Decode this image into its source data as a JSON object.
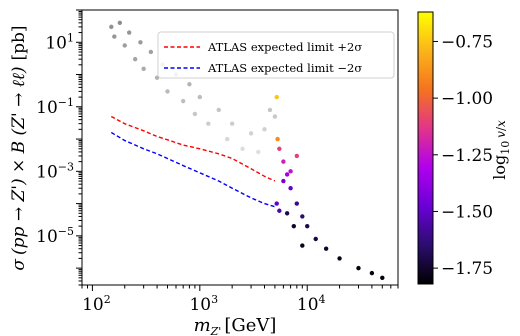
{
  "chart_data": {
    "type": "scatter",
    "title": "",
    "xlabel_base": "m",
    "xlabel_sub": "Z'",
    "xlabel_unit": "[GeV]",
    "ylabel_sigma": "σ",
    "ylabel_expr": "(pp → Z') × B (Z' → ℓℓ)",
    "ylabel_unit": "[pb]",
    "x_scale": "log",
    "y_scale": "log",
    "xlim": [
      80,
      70000
    ],
    "ylim": [
      3e-07,
      100
    ],
    "grid": false,
    "x_ticks": [
      {
        "base": "10",
        "exp": "2",
        "value": 100
      },
      {
        "base": "10",
        "exp": "3",
        "value": 1000
      },
      {
        "base": "10",
        "exp": "4",
        "value": 10000
      }
    ],
    "y_ticks": [
      {
        "base": "10",
        "exp": "1",
        "value": 10
      },
      {
        "base": "10",
        "exp": "−1",
        "value": 0.1
      },
      {
        "base": "10",
        "exp": "−3",
        "value": 0.001
      },
      {
        "base": "10",
        "exp": "−5",
        "value": 1e-05
      }
    ],
    "legend": {
      "placement": "top-right",
      "entries": [
        {
          "label": "ATLAS expected limit +2σ",
          "color": "#ff0000",
          "style": "dashed"
        },
        {
          "label": "ATLAS expected limit −2σ",
          "color": "#0000ff",
          "style": "dashed"
        }
      ]
    },
    "series": [
      {
        "name": "ATLAS expected limit +2σ",
        "color": "#ff0000",
        "style": "dashed",
        "x": [
          150,
          200,
          300,
          400,
          500,
          700,
          1000,
          1500,
          2000,
          3000,
          4000,
          5000
        ],
        "y": [
          0.05,
          0.03,
          0.018,
          0.012,
          0.0095,
          0.0065,
          0.005,
          0.0035,
          0.0025,
          0.0012,
          0.0007,
          0.0005
        ]
      },
      {
        "name": "ATLAS expected limit −2σ",
        "color": "#0000ff",
        "style": "dashed",
        "x": [
          150,
          200,
          300,
          400,
          500,
          700,
          1000,
          1500,
          2000,
          3000,
          4000,
          5000
        ],
        "y": [
          0.016,
          0.009,
          0.005,
          0.0035,
          0.0025,
          0.0015,
          0.0009,
          0.0005,
          0.0003,
          0.00015,
          0.0001,
          8e-05
        ]
      }
    ],
    "scatter_points": [
      {
        "x": 150,
        "y": 30,
        "c": null
      },
      {
        "x": 160,
        "y": 15,
        "c": null
      },
      {
        "x": 180,
        "y": 40,
        "c": null
      },
      {
        "x": 200,
        "y": 8,
        "c": null
      },
      {
        "x": 220,
        "y": 20,
        "c": null
      },
      {
        "x": 250,
        "y": 3,
        "c": null
      },
      {
        "x": 280,
        "y": 10,
        "c": null
      },
      {
        "x": 300,
        "y": 1.5,
        "c": null
      },
      {
        "x": 350,
        "y": 5,
        "c": null
      },
      {
        "x": 400,
        "y": 0.8,
        "c": null
      },
      {
        "x": 450,
        "y": 2,
        "c": null
      },
      {
        "x": 500,
        "y": 0.3,
        "c": null
      },
      {
        "x": 600,
        "y": 1,
        "c": null
      },
      {
        "x": 700,
        "y": 0.15,
        "c": null
      },
      {
        "x": 800,
        "y": 0.5,
        "c": null
      },
      {
        "x": 900,
        "y": 0.06,
        "c": null
      },
      {
        "x": 1000,
        "y": 0.2,
        "c": null
      },
      {
        "x": 1200,
        "y": 0.03,
        "c": null
      },
      {
        "x": 1500,
        "y": 0.08,
        "c": null
      },
      {
        "x": 1800,
        "y": 0.01,
        "c": null
      },
      {
        "x": 2000,
        "y": 0.03,
        "c": null
      },
      {
        "x": 2500,
        "y": 0.005,
        "c": null
      },
      {
        "x": 3000,
        "y": 0.015,
        "c": null
      },
      {
        "x": 3500,
        "y": 0.004,
        "c": null
      },
      {
        "x": 4000,
        "y": 0.02,
        "c": null
      },
      {
        "x": 4500,
        "y": 0.08,
        "c": null
      },
      {
        "x": 5000,
        "y": 0.05,
        "c": null
      },
      {
        "x": 5200,
        "y": 0.2,
        "c": -0.75
      },
      {
        "x": 5300,
        "y": 0.01,
        "c": -0.9
      },
      {
        "x": 5500,
        "y": 0.005,
        "c": -1.1
      },
      {
        "x": 6000,
        "y": 0.002,
        "c": -1.2
      },
      {
        "x": 6500,
        "y": 0.0008,
        "c": -1.35
      },
      {
        "x": 7000,
        "y": 0.0003,
        "c": -1.5
      },
      {
        "x": 8000,
        "y": 0.0001,
        "c": -1.6
      },
      {
        "x": 9000,
        "y": 4e-05,
        "c": -1.65
      },
      {
        "x": 10000,
        "y": 2e-05,
        "c": -1.7
      },
      {
        "x": 12000,
        "y": 8e-06,
        "c": -1.72
      },
      {
        "x": 15000,
        "y": 4e-06,
        "c": -1.75
      },
      {
        "x": 20000,
        "y": 2e-06,
        "c": -1.78
      },
      {
        "x": 30000,
        "y": 1e-06,
        "c": -1.8
      },
      {
        "x": 40000,
        "y": 7e-07,
        "c": -1.8
      },
      {
        "x": 50000,
        "y": 5e-07,
        "c": -1.8
      },
      {
        "x": 6000,
        "y": 0.0005,
        "c": -1.45
      },
      {
        "x": 7000,
        "y": 0.001,
        "c": -1.25
      },
      {
        "x": 8000,
        "y": 0.003,
        "c": -1.1
      },
      {
        "x": 6500,
        "y": 5e-05,
        "c": -1.7
      },
      {
        "x": 7500,
        "y": 2e-05,
        "c": -1.75
      },
      {
        "x": 9000,
        "y": 5e-06,
        "c": -1.78
      },
      {
        "x": 5500,
        "y": 6e-05,
        "c": -1.55
      },
      {
        "x": 5200,
        "y": 0.0001,
        "c": -1.5
      }
    ],
    "colorbar": {
      "label_base": "log",
      "label_sub": "10",
      "label_num": "v",
      "label_den": "x",
      "range": [
        -1.82,
        -0.62
      ],
      "ticks": [
        {
          "label": "−0.75",
          "value": -0.75
        },
        {
          "label": "−1.00",
          "value": -1.0
        },
        {
          "label": "−1.25",
          "value": -1.25
        },
        {
          "label": "−1.50",
          "value": -1.5
        },
        {
          "label": "−1.75",
          "value": -1.75
        }
      ],
      "colormap": "plasma-like",
      "stops": [
        "#000000",
        "#2b0d6e",
        "#6a00d6",
        "#b000ee",
        "#e2348a",
        "#f4731e",
        "#fbb41a",
        "#ffff00"
      ]
    }
  }
}
